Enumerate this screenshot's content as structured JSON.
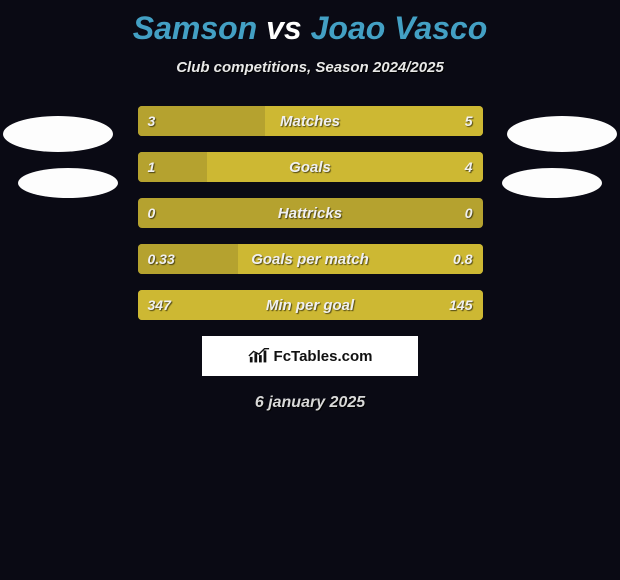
{
  "title": {
    "player1": "Samson",
    "vs": "vs",
    "player2": "Joao Vasco"
  },
  "subtitle": "Club competitions, Season 2024/2025",
  "palette": {
    "bg": "#0a0a14",
    "title_player_color": "#43a0c4",
    "bar_left_color": "#b5a22f",
    "bar_right_color": "#cdb833",
    "text_shadow": "rgba(0,0,0,0.6)"
  },
  "stats": [
    {
      "label": "Matches",
      "left_val": "3",
      "right_val": "5",
      "left_pct": 37,
      "right_pct": 63
    },
    {
      "label": "Goals",
      "left_val": "1",
      "right_val": "4",
      "left_pct": 20,
      "right_pct": 80
    },
    {
      "label": "Hattricks",
      "left_val": "0",
      "right_val": "0",
      "left_pct": 0,
      "right_pct": 0
    },
    {
      "label": "Goals per match",
      "left_val": "0.33",
      "right_val": "0.8",
      "left_pct": 29,
      "right_pct": 71
    },
    {
      "label": "Min per goal",
      "left_val": "347",
      "right_val": "145",
      "left_pct": 0,
      "right_pct": 100
    }
  ],
  "logo_text": "FcTables.com",
  "date": "6 january 2025"
}
